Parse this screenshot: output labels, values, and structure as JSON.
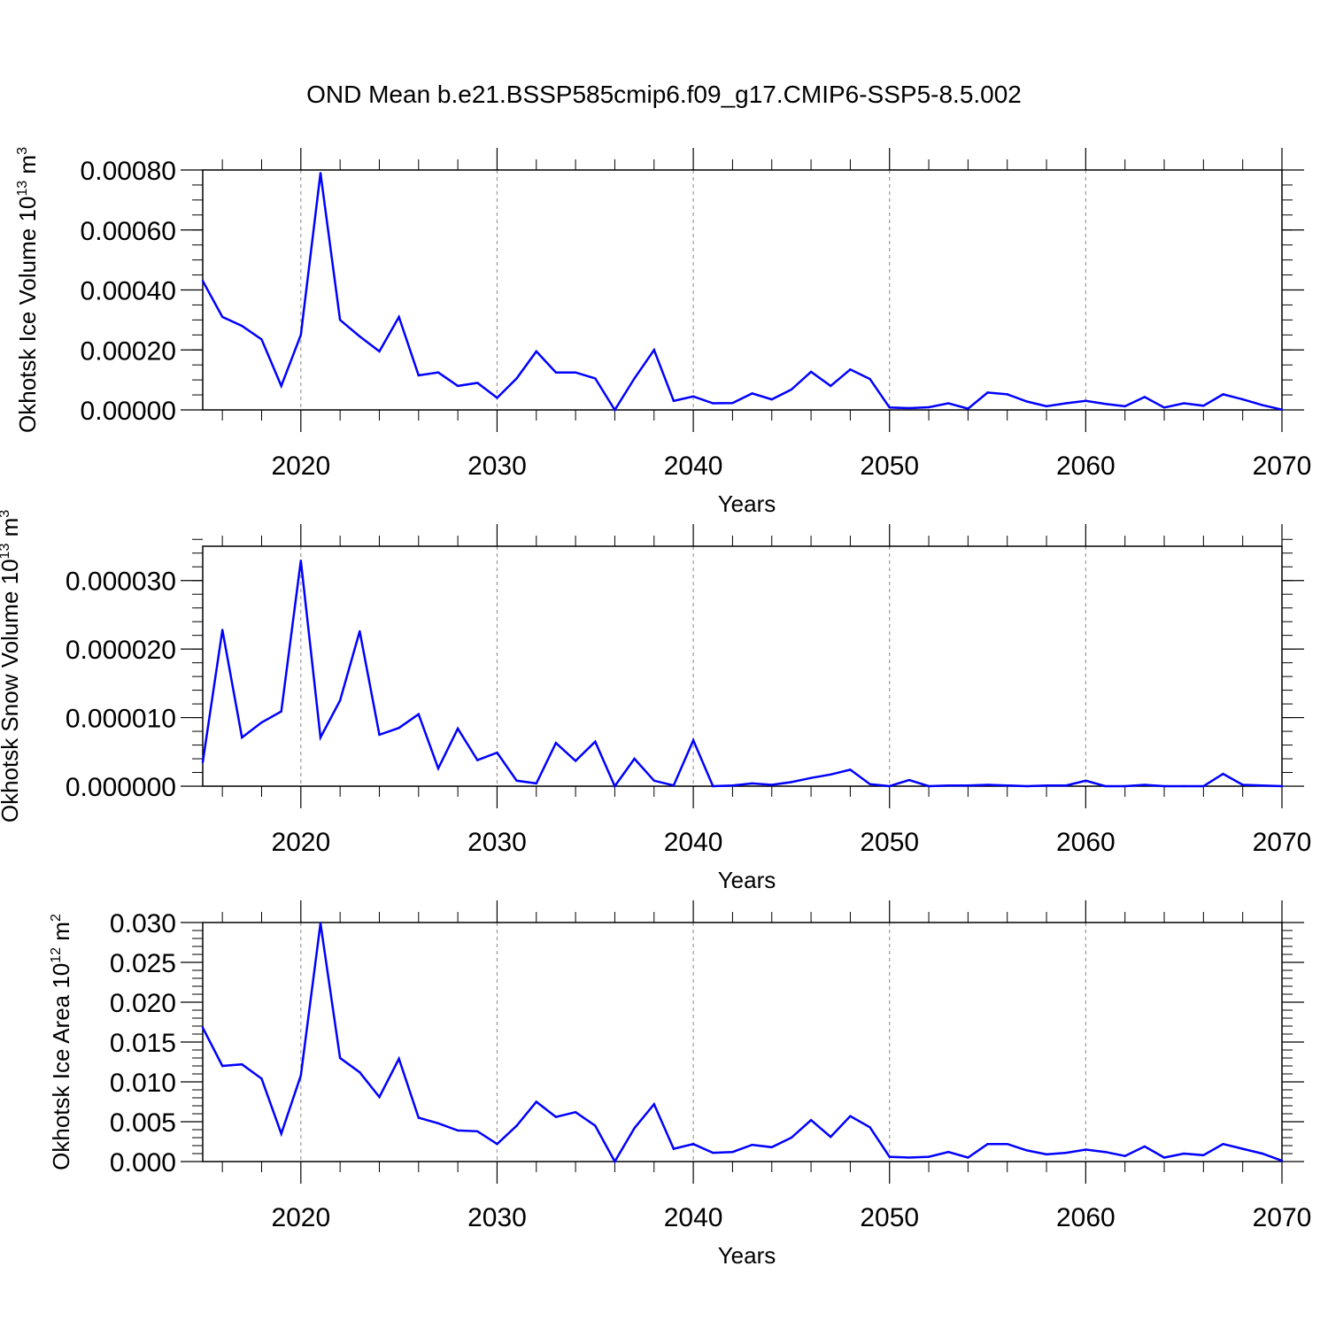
{
  "figure": {
    "title": "OND Mean b.e21.BSSP585cmip6.f09_g17.CMIP6-SSP5-8.5.002"
  },
  "colors": {
    "line": "#0000ff",
    "axis": "#000000",
    "grid": "#9a9a9a"
  },
  "chart_data": [
    {
      "type": "line",
      "name": "ice-volume",
      "ylabel": "Okhotsk Ice Volume 10",
      "ylabel_exp": "13",
      "ylabel_unit": " m",
      "ylabel_unit_exp": "3",
      "xlabel": "Years",
      "xlim": [
        2015,
        2070
      ],
      "ylim": [
        0,
        0.0008
      ],
      "x_ticks": [
        2020,
        2030,
        2040,
        2050,
        2060,
        2070
      ],
      "y_ticks": [
        0,
        0.0002,
        0.0004,
        0.0006,
        0.0008
      ],
      "y_tick_labels": [
        "0.00000",
        "0.00020",
        "0.00040",
        "0.00060",
        "0.00080"
      ],
      "y_minor_step": 5e-05,
      "grid": "vertical dashed at major x ticks",
      "x": [
        2015,
        2016,
        2017,
        2018,
        2019,
        2020,
        2021,
        2022,
        2023,
        2024,
        2025,
        2026,
        2027,
        2028,
        2029,
        2030,
        2031,
        2032,
        2033,
        2034,
        2035,
        2036,
        2037,
        2038,
        2039,
        2040,
        2041,
        2042,
        2043,
        2044,
        2045,
        2046,
        2047,
        2048,
        2049,
        2050,
        2051,
        2052,
        2053,
        2054,
        2055,
        2056,
        2057,
        2058,
        2059,
        2060,
        2061,
        2062,
        2063,
        2064,
        2065,
        2066,
        2067,
        2068,
        2069,
        2070
      ],
      "y": [
        0.00043,
        0.00031,
        0.00028,
        0.000235,
        8e-05,
        0.00025,
        0.00079,
        0.0003,
        0.000245,
        0.000195,
        0.00031,
        0.000115,
        0.000125,
        8e-05,
        9e-05,
        4e-05,
        0.000105,
        0.000195,
        0.000125,
        0.000125,
        0.000105,
        0.0,
        0.000105,
        0.0002,
        3e-05,
        4.5e-05,
        2.2e-05,
        2.3e-05,
        5.5e-05,
        3.5e-05,
        6.8e-05,
        0.000127,
        8e-05,
        0.000135,
        0.000103,
        8e-06,
        6e-06,
        9e-06,
        2.2e-05,
        4e-06,
        5.8e-05,
        5.2e-05,
        2.8e-05,
        1.2e-05,
        2.2e-05,
        3e-05,
        2e-05,
        1.2e-05,
        4.3e-05,
        8e-06,
        2.2e-05,
        1.4e-05,
        5.2e-05,
        3.5e-05,
        1.6e-05,
        1e-06
      ]
    },
    {
      "type": "line",
      "name": "snow-volume",
      "ylabel": "Okhotsk Snow Volume 10",
      "ylabel_exp": "13",
      "ylabel_unit": " m",
      "ylabel_unit_exp": "3",
      "xlabel": "Years",
      "xlim": [
        2015,
        2070
      ],
      "ylim": [
        0,
        3.5e-05
      ],
      "x_ticks": [
        2020,
        2030,
        2040,
        2050,
        2060,
        2070
      ],
      "y_ticks": [
        0,
        1e-05,
        2e-05,
        3e-05
      ],
      "y_tick_labels": [
        "0.000000",
        "0.000010",
        "0.000020",
        "0.000030"
      ],
      "y_minor_step": 2e-06,
      "grid": "vertical dashed at major x ticks",
      "x": [
        2015,
        2016,
        2017,
        2018,
        2019,
        2020,
        2021,
        2022,
        2023,
        2024,
        2025,
        2026,
        2027,
        2028,
        2029,
        2030,
        2031,
        2032,
        2033,
        2034,
        2035,
        2036,
        2037,
        2038,
        2039,
        2040,
        2041,
        2042,
        2043,
        2044,
        2045,
        2046,
        2047,
        2048,
        2049,
        2050,
        2051,
        2052,
        2053,
        2054,
        2055,
        2056,
        2057,
        2058,
        2059,
        2060,
        2061,
        2062,
        2063,
        2064,
        2065,
        2066,
        2067,
        2068,
        2069,
        2070
      ],
      "y": [
        3.5e-06,
        2.28e-05,
        7.1e-06,
        9.3e-06,
        1.09e-05,
        3.29e-05,
        7.1e-06,
        1.25e-05,
        2.26e-05,
        7.5e-06,
        8.5e-06,
        1.05e-05,
        2.6e-06,
        8.4e-06,
        3.8e-06,
        4.9e-06,
        8e-07,
        4e-07,
        6.3e-06,
        3.7e-06,
        6.5e-06,
        0.0,
        4e-06,
        8e-07,
        1e-07,
        6.7e-06,
        0.0,
        1e-07,
        4e-07,
        2e-07,
        6e-07,
        1.2e-06,
        1.7e-06,
        2.4e-06,
        3e-07,
        0.0,
        9e-07,
        0.0,
        1e-07,
        1e-07,
        2e-07,
        1e-07,
        0.0,
        1e-07,
        1e-07,
        8e-07,
        0.0,
        0.0,
        2e-07,
        0.0,
        0.0,
        0.0,
        1.8e-06,
        2e-07,
        1e-07,
        0.0
      ]
    },
    {
      "type": "line",
      "name": "ice-area",
      "ylabel": "Okhotsk Ice Area 10",
      "ylabel_exp": "12",
      "ylabel_unit": " m",
      "ylabel_unit_exp": "2",
      "xlabel": "Years",
      "xlim": [
        2015,
        2070
      ],
      "ylim": [
        0,
        0.03
      ],
      "x_ticks": [
        2020,
        2030,
        2040,
        2050,
        2060,
        2070
      ],
      "y_ticks": [
        0,
        0.005,
        0.01,
        0.015,
        0.02,
        0.025,
        0.03
      ],
      "y_tick_labels": [
        "0.000",
        "0.005",
        "0.010",
        "0.015",
        "0.020",
        "0.025",
        "0.030"
      ],
      "y_minor_step": 0.001,
      "grid": "vertical dashed at major x ticks",
      "x": [
        2015,
        2016,
        2017,
        2018,
        2019,
        2020,
        2021,
        2022,
        2023,
        2024,
        2025,
        2026,
        2027,
        2028,
        2029,
        2030,
        2031,
        2032,
        2033,
        2034,
        2035,
        2036,
        2037,
        2038,
        2039,
        2040,
        2041,
        2042,
        2043,
        2044,
        2045,
        2046,
        2047,
        2048,
        2049,
        2050,
        2051,
        2052,
        2053,
        2054,
        2055,
        2056,
        2057,
        2058,
        2059,
        2060,
        2061,
        2062,
        2063,
        2064,
        2065,
        2066,
        2067,
        2068,
        2069,
        2070
      ],
      "y": [
        0.0168,
        0.012,
        0.0122,
        0.0104,
        0.0035,
        0.0108,
        0.0299,
        0.013,
        0.0112,
        0.0081,
        0.0129,
        0.0055,
        0.0048,
        0.0039,
        0.0038,
        0.0022,
        0.0045,
        0.0075,
        0.0056,
        0.0062,
        0.0045,
        0.0,
        0.0042,
        0.0072,
        0.0016,
        0.0022,
        0.0011,
        0.0012,
        0.0021,
        0.0018,
        0.003,
        0.0052,
        0.0031,
        0.0057,
        0.0043,
        0.0006,
        0.0005,
        0.0006,
        0.0012,
        0.0005,
        0.0022,
        0.0022,
        0.0014,
        0.0009,
        0.0011,
        0.0015,
        0.0012,
        0.0007,
        0.0019,
        0.0005,
        0.001,
        0.0008,
        0.0022,
        0.0016,
        0.001,
        0.0001
      ]
    }
  ]
}
